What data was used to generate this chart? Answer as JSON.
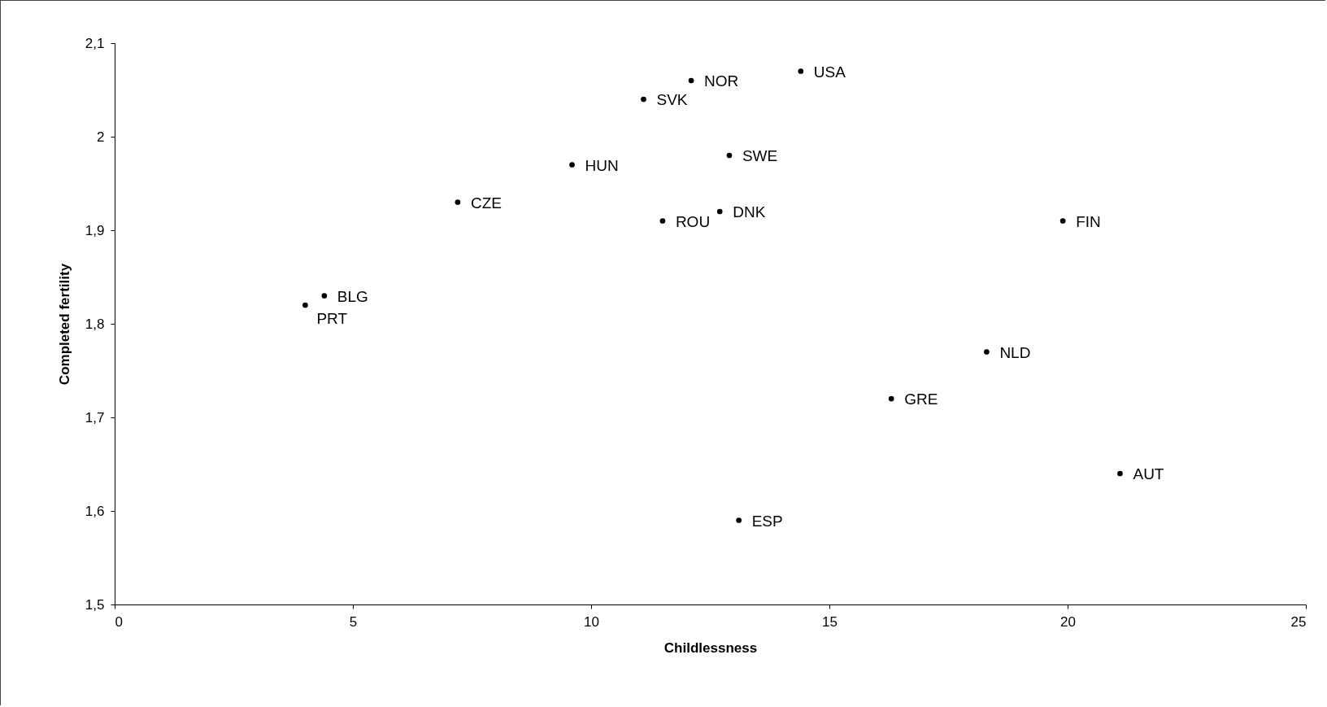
{
  "chart_data": {
    "type": "scatter",
    "xlabel": "Childlessness",
    "ylabel": "Completed fertility",
    "x": [
      4.0,
      4.4,
      7.2,
      9.6,
      11.1,
      12.1,
      14.4,
      12.9,
      11.5,
      12.7,
      19.9,
      18.3,
      16.3,
      21.1,
      13.1
    ],
    "series": [
      {
        "color": "#000000",
        "values": [
          1.82,
          1.83,
          1.93,
          1.97,
          2.04,
          2.06,
          2.07,
          1.98,
          1.91,
          1.92,
          1.91,
          1.77,
          1.72,
          1.64,
          1.59
        ]
      }
    ],
    "annotations": [
      {
        "text": "PRT",
        "x": 4.0,
        "y": 1.82
      },
      {
        "text": "BLG",
        "x": 4.4,
        "y": 1.83
      },
      {
        "text": "CZE",
        "x": 7.2,
        "y": 1.93
      },
      {
        "text": "HUN",
        "x": 9.6,
        "y": 1.97
      },
      {
        "text": "SVK",
        "x": 11.1,
        "y": 2.04
      },
      {
        "text": "NOR",
        "x": 12.1,
        "y": 2.06
      },
      {
        "text": "USA",
        "x": 14.4,
        "y": 2.07
      },
      {
        "text": "SWE",
        "x": 12.9,
        "y": 1.98
      },
      {
        "text": "ROU",
        "x": 11.5,
        "y": 1.91
      },
      {
        "text": "DNK",
        "x": 12.7,
        "y": 1.92
      },
      {
        "text": "FIN",
        "x": 19.9,
        "y": 1.91
      },
      {
        "text": "NLD",
        "x": 18.3,
        "y": 1.77
      },
      {
        "text": "GRE",
        "x": 16.3,
        "y": 1.72
      },
      {
        "text": "AUT",
        "x": 21.1,
        "y": 1.64
      },
      {
        "text": "ESP",
        "x": 13.1,
        "y": 1.59
      }
    ],
    "xlim": [
      0,
      25
    ],
    "xticks": [
      0,
      5,
      10,
      15,
      20,
      25
    ],
    "ylim": [
      1.5,
      2.1
    ],
    "yticks": [
      {
        "value": 1.5,
        "label": "1,5"
      },
      {
        "value": 1.6,
        "label": "1,6"
      },
      {
        "value": 1.7,
        "label": "1,7"
      },
      {
        "value": 1.8,
        "label": "1,8"
      },
      {
        "value": 1.9,
        "label": "1,9"
      },
      2,
      {
        "value": 2.1,
        "label": "2,1"
      }
    ],
    "grid": false,
    "marker": "circle"
  }
}
